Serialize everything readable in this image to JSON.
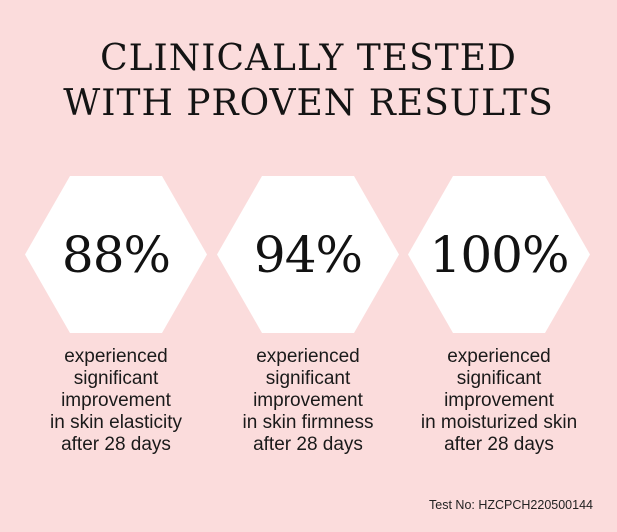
{
  "headline": {
    "line1": "CLINICALLY TESTED",
    "line2": "WITH PROVEN RESULTS"
  },
  "stats": [
    {
      "value": "88%",
      "lines": [
        "experienced",
        "significant",
        "improvement",
        "in skin elasticity",
        "after 28 days"
      ]
    },
    {
      "value": "94%",
      "lines": [
        "experienced",
        "significant",
        "improvement",
        "in skin firmness",
        "after 28 days"
      ]
    },
    {
      "value": "100%",
      "lines": [
        "experienced",
        "significant",
        "improvement",
        "in moisturized skin",
        "after 28 days"
      ]
    }
  ],
  "footnote": "Test No: HZCPCH220500144",
  "colors": {
    "background": "#fbdcdc",
    "hexagon": "#ffffff",
    "text": "#111111"
  }
}
